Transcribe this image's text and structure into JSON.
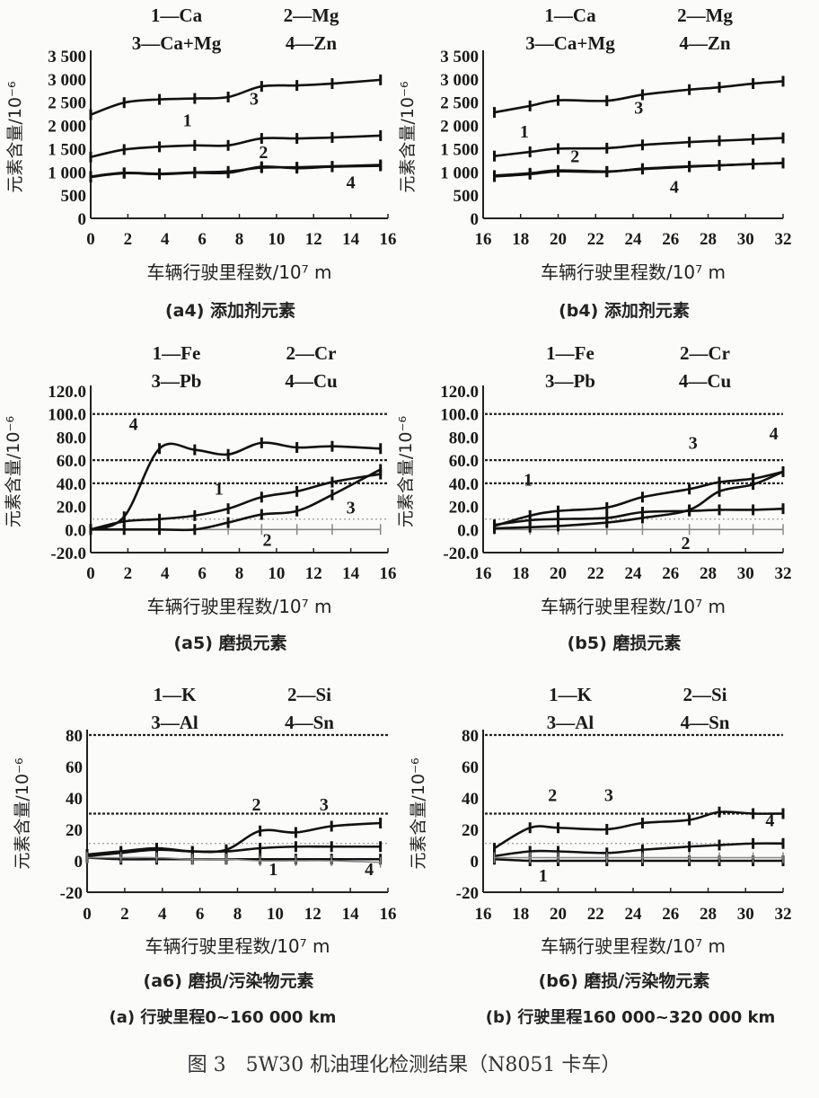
{
  "figure_caption": "图 3　5W30 机油理化检测结果（N8051 卡车）",
  "column_captions": [
    "(a) 行驶里程0~160 000 km",
    "(b) 行驶里程160 000~320 000 km"
  ],
  "chart_data": [
    {
      "id": "a4",
      "type": "line",
      "title": "(a4) 添加剂元素",
      "xlabel": "车辆行驶里程数/10⁷ m",
      "ylabel": "元素含量/10⁻⁶",
      "xlim": [
        0,
        16
      ],
      "ylim": [
        0,
        3500
      ],
      "xticks": [
        0,
        2,
        4,
        6,
        8,
        10,
        12,
        14,
        16
      ],
      "yticks": [
        0,
        500,
        1000,
        1500,
        2000,
        2500,
        3000,
        3500
      ],
      "ytick_labels": [
        "0",
        "500",
        "1 000",
        "1 500",
        "2 000",
        "2 500",
        "3 000",
        "3 500"
      ],
      "legend": [
        "1—Ca",
        "2—Mg",
        "3—Ca+Mg",
        "4—Zn"
      ],
      "reference_lines": [],
      "x": [
        0,
        1.8,
        3.7,
        5.6,
        7.4,
        9.2,
        11.1,
        13.0,
        15.6
      ],
      "series": [
        {
          "name": "1—Ca",
          "values": [
            1320,
            1480,
            1540,
            1570,
            1570,
            1720,
            1720,
            1740,
            1780
          ]
        },
        {
          "name": "2—Mg",
          "values": [
            900,
            980,
            960,
            990,
            1010,
            1090,
            1100,
            1120,
            1150
          ]
        },
        {
          "name": "3—Ca+Mg",
          "values": [
            2230,
            2490,
            2560,
            2580,
            2610,
            2840,
            2860,
            2900,
            2980
          ]
        },
        {
          "name": "4—Zn",
          "values": [
            890,
            970,
            950,
            980,
            980,
            1110,
            1080,
            1110,
            1130
          ]
        }
      ],
      "annotations": [
        {
          "label": "3",
          "x": 8.8,
          "y": 2450
        },
        {
          "label": "1",
          "x": 5.2,
          "y": 1980
        },
        {
          "label": "2",
          "x": 9.3,
          "y": 1300
        },
        {
          "label": "4",
          "x": 14.0,
          "y": 650
        }
      ]
    },
    {
      "id": "b4",
      "type": "line",
      "title": "(b4) 添加剂元素",
      "xlabel": "车辆行驶里程数/10⁷ m",
      "ylabel": "元素含量/10⁻⁶",
      "xlim": [
        16,
        32
      ],
      "ylim": [
        0,
        3500
      ],
      "xticks": [
        16,
        18,
        20,
        22,
        24,
        26,
        28,
        30,
        32
      ],
      "yticks": [
        0,
        500,
        1000,
        1500,
        2000,
        2500,
        3000,
        3500
      ],
      "ytick_labels": [
        "0",
        "500",
        "1 000",
        "1 500",
        "2 000",
        "2 500",
        "3 000",
        "3 500"
      ],
      "legend": [
        "1—Ca",
        "2—Mg",
        "3—Ca+Mg",
        "4—Zn"
      ],
      "reference_lines": [],
      "x": [
        16.6,
        18.5,
        20.0,
        22.6,
        24.5,
        27.0,
        28.6,
        30.4,
        32.0
      ],
      "series": [
        {
          "name": "1—Ca",
          "values": [
            1340,
            1430,
            1500,
            1510,
            1580,
            1640,
            1670,
            1700,
            1730
          ]
        },
        {
          "name": "2—Mg",
          "values": [
            920,
            970,
            1030,
            1010,
            1060,
            1110,
            1140,
            1170,
            1190
          ]
        },
        {
          "name": "3—Ca+Mg",
          "values": [
            2280,
            2420,
            2540,
            2530,
            2660,
            2770,
            2820,
            2900,
            2950
          ]
        },
        {
          "name": "4—Zn",
          "values": [
            900,
            950,
            1010,
            1000,
            1070,
            1120,
            1140,
            1170,
            1190
          ]
        }
      ],
      "annotations": [
        {
          "label": "3",
          "x": 24.3,
          "y": 2250
        },
        {
          "label": "1",
          "x": 18.2,
          "y": 1740
        },
        {
          "label": "2",
          "x": 20.9,
          "y": 1210
        },
        {
          "label": "4",
          "x": 26.2,
          "y": 550
        }
      ]
    },
    {
      "id": "a5",
      "type": "line",
      "title": "(a5) 磨损元素",
      "xlabel": "车辆行驶里程数/10⁷ m",
      "ylabel": "元素含量/10⁻⁶",
      "xlim": [
        0,
        16
      ],
      "ylim": [
        -20,
        120
      ],
      "xticks": [
        0,
        2,
        4,
        6,
        8,
        10,
        12,
        14,
        16
      ],
      "yticks": [
        -20,
        0,
        20,
        40,
        60,
        80,
        100,
        120
      ],
      "ytick_labels": [
        "-20.0",
        "0.0",
        "20.0",
        "40.0",
        "60.0",
        "80.0",
        "100.0",
        "120.0"
      ],
      "legend": [
        "1—Fe",
        "2—Cr",
        "3—Pb",
        "4—Cu"
      ],
      "reference_lines": [
        {
          "y": 100,
          "style": "dotted-heavy"
        },
        {
          "y": 60,
          "style": "dotted-heavy"
        },
        {
          "y": 40,
          "style": "dotted-heavy"
        },
        {
          "y": 9,
          "style": "dotted-light"
        }
      ],
      "x": [
        0,
        1.8,
        3.7,
        5.6,
        7.4,
        9.2,
        11.1,
        13.0,
        15.6
      ],
      "series": [
        {
          "name": "1—Fe",
          "values": [
            0,
            7,
            9,
            12,
            18,
            28,
            33,
            41,
            48
          ]
        },
        {
          "name": "2—Cr",
          "values": [
            0,
            0,
            0,
            0,
            0,
            0,
            0,
            0,
            0
          ]
        },
        {
          "name": "3—Pb",
          "values": [
            0,
            0,
            0,
            0,
            6,
            13,
            16,
            30,
            52
          ]
        },
        {
          "name": "4—Cu",
          "values": [
            0,
            11,
            70,
            69,
            65,
            75,
            71,
            72,
            70
          ]
        }
      ],
      "annotations": [
        {
          "label": "4",
          "x": 2.3,
          "y": 86
        },
        {
          "label": "1",
          "x": 6.9,
          "y": 30
        },
        {
          "label": "3",
          "x": 14.0,
          "y": 14
        },
        {
          "label": "2",
          "x": 9.5,
          "y": -14
        }
      ]
    },
    {
      "id": "b5",
      "type": "line",
      "title": "(b5) 磨损元素",
      "xlabel": "车辆行驶里程数/10⁷ m",
      "ylabel": "元素含量/10⁻⁶",
      "xlim": [
        16,
        32
      ],
      "ylim": [
        -20,
        120
      ],
      "xticks": [
        16,
        18,
        20,
        22,
        24,
        26,
        28,
        30,
        32
      ],
      "yticks": [
        -20,
        0,
        20,
        40,
        60,
        80,
        100,
        120
      ],
      "ytick_labels": [
        "-20.0",
        "0.0",
        "20.0",
        "40.0",
        "60.0",
        "80.0",
        "100.0",
        "120.0"
      ],
      "legend": [
        "1—Fe",
        "2—Cr",
        "3—Pb",
        "4—Cu"
      ],
      "reference_lines": [
        {
          "y": 100,
          "style": "dotted-heavy"
        },
        {
          "y": 60,
          "style": "dotted-heavy"
        },
        {
          "y": 40,
          "style": "dotted-heavy"
        },
        {
          "y": 9,
          "style": "dotted-light"
        }
      ],
      "x": [
        16.6,
        18.5,
        20.0,
        22.6,
        24.5,
        27.0,
        28.6,
        30.4,
        32.0
      ],
      "series": [
        {
          "name": "1—Fe",
          "values": [
            3,
            12,
            16,
            19,
            28,
            35,
            41,
            44,
            50
          ]
        },
        {
          "name": "2—Cr",
          "values": [
            0,
            0,
            0,
            0,
            0,
            0,
            0,
            0,
            0
          ]
        },
        {
          "name": "3—Pb",
          "values": [
            1,
            2,
            3,
            6,
            10,
            17,
            33,
            39,
            50
          ]
        },
        {
          "name": "4—Cu",
          "values": [
            4,
            8,
            9,
            10,
            15,
            16,
            17,
            17,
            18
          ]
        }
      ],
      "annotations": [
        {
          "label": "1",
          "x": 18.4,
          "y": 38
        },
        {
          "label": "3",
          "x": 27.2,
          "y": 70
        },
        {
          "label": "4",
          "x": 31.5,
          "y": 78
        },
        {
          "label": "2",
          "x": 26.8,
          "y": -17
        }
      ]
    },
    {
      "id": "a6",
      "type": "line",
      "title": "(a6) 磨损/污染物元素",
      "xlabel": "车辆行驶里程数/10⁷ m",
      "ylabel": "元素含量/10⁻⁶",
      "xlim": [
        0,
        16
      ],
      "ylim": [
        -20,
        80
      ],
      "xticks": [
        0,
        2,
        4,
        6,
        8,
        10,
        12,
        14,
        16
      ],
      "yticks": [
        -20,
        0,
        20,
        40,
        60,
        80
      ],
      "ytick_labels": [
        "-20",
        "0",
        "20",
        "40",
        "60",
        "80"
      ],
      "legend": [
        "1—K",
        "2—Si",
        "3—Al",
        "4—Sn"
      ],
      "reference_lines": [
        {
          "y": 80,
          "style": "dotted-heavy"
        },
        {
          "y": 30,
          "style": "dotted-heavy"
        },
        {
          "y": 11,
          "style": "dotted-light"
        }
      ],
      "x": [
        0,
        1.8,
        3.7,
        5.6,
        7.4,
        9.2,
        11.1,
        13.0,
        15.6
      ],
      "series": [
        {
          "name": "1—K",
          "values": [
            2,
            1,
            1,
            1,
            1,
            1,
            1,
            1,
            1
          ]
        },
        {
          "name": "2—Si",
          "values": [
            4,
            6,
            8,
            6,
            7,
            19,
            18,
            22,
            24
          ]
        },
        {
          "name": "3—Al",
          "values": [
            3,
            5,
            7,
            6,
            6,
            8,
            9,
            9,
            9
          ]
        },
        {
          "name": "4—Sn",
          "values": [
            2,
            2,
            2,
            1,
            1,
            0,
            0,
            0,
            -1
          ]
        }
      ],
      "annotations": [
        {
          "label": "2",
          "x": 9.0,
          "y": 32
        },
        {
          "label": "3",
          "x": 12.6,
          "y": 32
        },
        {
          "label": "1",
          "x": 9.9,
          "y": -9
        },
        {
          "label": "4",
          "x": 15.0,
          "y": -9
        }
      ]
    },
    {
      "id": "b6",
      "type": "line",
      "title": "(b6) 磨损/污染物元素",
      "xlabel": "车辆行驶里程数/10⁷ m",
      "ylabel": "元素含量/10⁻⁶",
      "xlim": [
        16,
        32
      ],
      "ylim": [
        -20,
        80
      ],
      "xticks": [
        16,
        18,
        20,
        22,
        24,
        26,
        28,
        30,
        32
      ],
      "yticks": [
        -20,
        0,
        20,
        40,
        60,
        80
      ],
      "ytick_labels": [
        "-20",
        "0",
        "20",
        "40",
        "60",
        "80"
      ],
      "legend": [
        "1—K",
        "2—Si",
        "3—Al",
        "4—Sn"
      ],
      "reference_lines": [
        {
          "y": 80,
          "style": "dotted-heavy"
        },
        {
          "y": 30,
          "style": "dotted-heavy"
        },
        {
          "y": 11,
          "style": "dotted-light"
        }
      ],
      "x": [
        16.6,
        18.5,
        20.0,
        22.6,
        24.5,
        27.0,
        28.6,
        30.4,
        32.0
      ],
      "series": [
        {
          "name": "1—K",
          "values": [
            1,
            0,
            0,
            0,
            0,
            0,
            0,
            0,
            0
          ]
        },
        {
          "name": "2—Si",
          "values": [
            8,
            21,
            21,
            20,
            24,
            26,
            31,
            30,
            30
          ]
        },
        {
          "name": "3—Al",
          "values": [
            3,
            6,
            6,
            5,
            7,
            9,
            10,
            11,
            11
          ]
        },
        {
          "name": "4—Sn",
          "values": [
            2,
            2,
            2,
            2,
            2,
            2,
            2,
            2,
            2
          ]
        }
      ],
      "annotations": [
        {
          "label": "2",
          "x": 19.7,
          "y": 38
        },
        {
          "label": "3",
          "x": 22.7,
          "y": 38
        },
        {
          "label": "4",
          "x": 31.3,
          "y": 22
        },
        {
          "label": "1",
          "x": 19.2,
          "y": -13
        }
      ]
    }
  ]
}
